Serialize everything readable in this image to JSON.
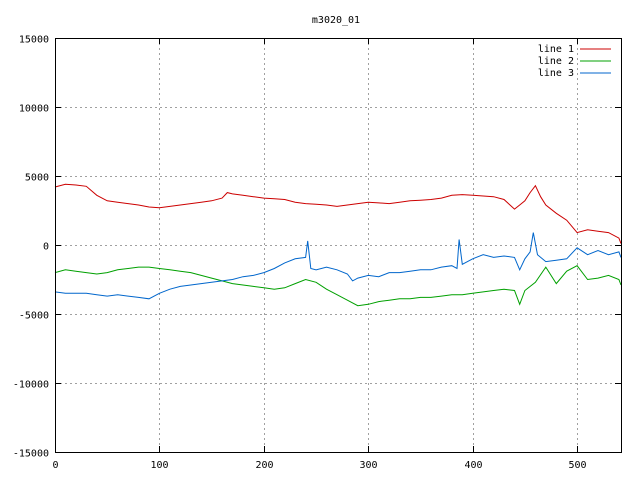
{
  "chart_data": {
    "type": "line",
    "title": "m3020_01",
    "xlabel": "",
    "ylabel": "",
    "xlim": [
      0,
      542
    ],
    "ylim": [
      -15000,
      15000
    ],
    "x_ticks": [
      0,
      100,
      200,
      300,
      400,
      500
    ],
    "y_ticks": [
      -15000,
      -10000,
      -5000,
      0,
      5000,
      10000,
      15000
    ],
    "grid": true,
    "legend_position": "top-right",
    "series": [
      {
        "name": "line 1",
        "color": "#cc0000",
        "x": [
          0,
          10,
          20,
          30,
          40,
          50,
          60,
          70,
          80,
          90,
          100,
          110,
          120,
          130,
          140,
          150,
          160,
          165,
          170,
          180,
          190,
          200,
          210,
          220,
          230,
          240,
          250,
          260,
          270,
          280,
          290,
          300,
          310,
          320,
          330,
          340,
          350,
          360,
          370,
          380,
          390,
          400,
          410,
          420,
          430,
          440,
          445,
          450,
          455,
          460,
          465,
          470,
          480,
          490,
          500,
          510,
          520,
          530,
          540,
          542
        ],
        "y": [
          4200,
          4400,
          4350,
          4250,
          3600,
          3200,
          3100,
          3000,
          2900,
          2750,
          2700,
          2800,
          2900,
          3000,
          3100,
          3200,
          3400,
          3800,
          3700,
          3600,
          3500,
          3400,
          3350,
          3300,
          3100,
          3000,
          2950,
          2900,
          2800,
          2900,
          3000,
          3100,
          3050,
          3000,
          3100,
          3200,
          3250,
          3300,
          3400,
          3600,
          3650,
          3600,
          3550,
          3500,
          3300,
          2600,
          2900,
          3200,
          3800,
          4300,
          3500,
          2900,
          2300,
          1800,
          900,
          1100,
          1000,
          900,
          500,
          100
        ]
      },
      {
        "name": "line 2",
        "color": "#00a000",
        "x": [
          0,
          10,
          20,
          30,
          40,
          50,
          60,
          70,
          80,
          90,
          100,
          110,
          120,
          130,
          140,
          150,
          160,
          170,
          180,
          190,
          200,
          210,
          220,
          230,
          240,
          250,
          260,
          270,
          280,
          290,
          300,
          310,
          320,
          330,
          340,
          350,
          360,
          370,
          380,
          390,
          400,
          410,
          420,
          430,
          440,
          445,
          450,
          460,
          470,
          480,
          490,
          500,
          510,
          520,
          530,
          540,
          542
        ],
        "y": [
          -2000,
          -1800,
          -1900,
          -2000,
          -2100,
          -2000,
          -1800,
          -1700,
          -1600,
          -1600,
          -1700,
          -1800,
          -1900,
          -2000,
          -2200,
          -2400,
          -2600,
          -2800,
          -2900,
          -3000,
          -3100,
          -3200,
          -3100,
          -2800,
          -2500,
          -2700,
          -3200,
          -3600,
          -4000,
          -4400,
          -4300,
          -4100,
          -4000,
          -3900,
          -3900,
          -3800,
          -3800,
          -3700,
          -3600,
          -3600,
          -3500,
          -3400,
          -3300,
          -3200,
          -3300,
          -4300,
          -3300,
          -2700,
          -1600,
          -2800,
          -1900,
          -1500,
          -2500,
          -2400,
          -2200,
          -2500,
          -2900
        ]
      },
      {
        "name": "line 3",
        "color": "#0066cc",
        "x": [
          0,
          10,
          20,
          30,
          40,
          50,
          60,
          70,
          80,
          90,
          100,
          110,
          120,
          130,
          140,
          150,
          160,
          170,
          180,
          190,
          200,
          210,
          220,
          230,
          240,
          242,
          245,
          250,
          260,
          270,
          280,
          285,
          290,
          300,
          310,
          320,
          330,
          340,
          350,
          360,
          370,
          380,
          385,
          387,
          390,
          400,
          410,
          420,
          430,
          440,
          445,
          450,
          455,
          458,
          462,
          470,
          480,
          490,
          500,
          510,
          520,
          530,
          540,
          542
        ],
        "y": [
          -3400,
          -3500,
          -3500,
          -3500,
          -3600,
          -3700,
          -3600,
          -3700,
          -3800,
          -3900,
          -3500,
          -3200,
          -3000,
          -2900,
          -2800,
          -2700,
          -2600,
          -2500,
          -2300,
          -2200,
          -2000,
          -1700,
          -1300,
          -1000,
          -900,
          300,
          -1700,
          -1800,
          -1600,
          -1800,
          -2100,
          -2600,
          -2400,
          -2200,
          -2300,
          -2000,
          -2000,
          -1900,
          -1800,
          -1800,
          -1600,
          -1500,
          -1700,
          400,
          -1400,
          -1000,
          -700,
          -900,
          -800,
          -900,
          -1800,
          -1000,
          -500,
          900,
          -700,
          -1200,
          -1100,
          -1000,
          -200,
          -700,
          -400,
          -700,
          -500,
          -900
        ]
      }
    ]
  }
}
